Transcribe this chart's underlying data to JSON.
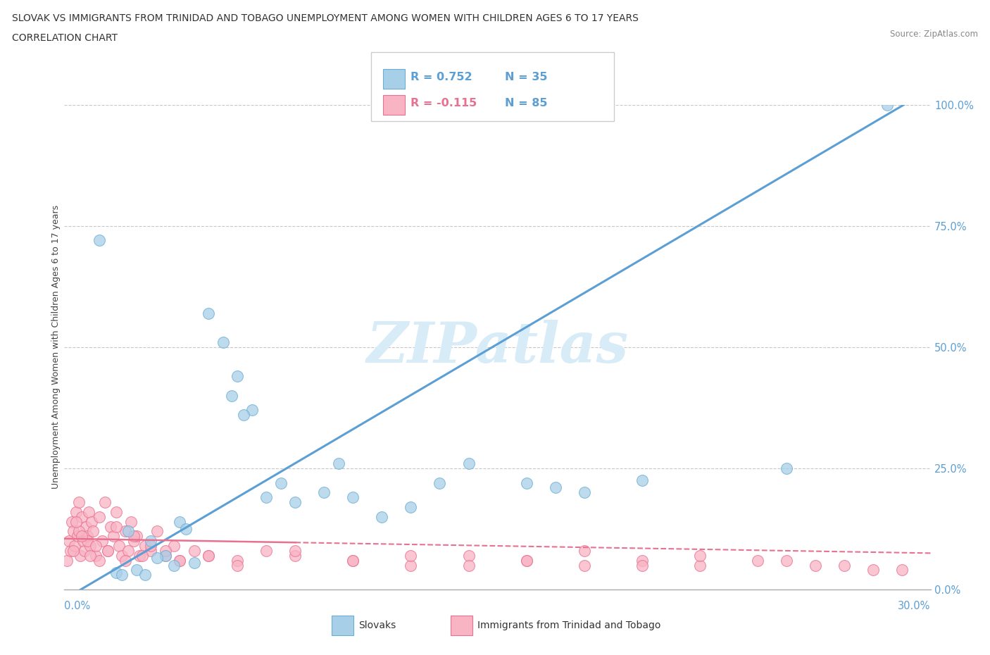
{
  "title_line1": "SLOVAK VS IMMIGRANTS FROM TRINIDAD AND TOBAGO UNEMPLOYMENT AMONG WOMEN WITH CHILDREN AGES 6 TO 17 YEARS",
  "title_line2": "CORRELATION CHART",
  "source": "Source: ZipAtlas.com",
  "ylabel_label": "Unemployment Among Women with Children Ages 6 to 17 years",
  "legend_slovak": "Slovaks",
  "legend_tt": "Immigrants from Trinidad and Tobago",
  "r_slovak": "R = 0.752",
  "n_slovak": "N = 35",
  "r_tt": "R = -0.115",
  "n_tt": "N = 85",
  "color_slovak": "#a8cfe8",
  "color_tt": "#f9b4c4",
  "color_slovak_edge": "#6aaed6",
  "color_tt_edge": "#e87090",
  "color_slovak_line": "#5b9fd4",
  "color_tt_line": "#e87090",
  "watermark_color": "#d8ecf7",
  "background": "#ffffff",
  "slovak_x": [
    1.2,
    1.8,
    2.5,
    3.0,
    3.5,
    4.0,
    4.5,
    5.0,
    5.5,
    6.0,
    6.5,
    7.0,
    7.5,
    8.0,
    9.0,
    10.0,
    11.0,
    12.0,
    13.0,
    14.0,
    16.0,
    17.0,
    18.0,
    20.0,
    25.0,
    28.5,
    3.2,
    4.2,
    2.0,
    2.2,
    2.8,
    3.8,
    5.8,
    6.2,
    9.5
  ],
  "slovak_y": [
    72.0,
    3.5,
    4.0,
    10.0,
    7.0,
    14.0,
    5.5,
    57.0,
    51.0,
    44.0,
    37.0,
    19.0,
    22.0,
    18.0,
    20.0,
    19.0,
    15.0,
    17.0,
    22.0,
    26.0,
    22.0,
    21.0,
    20.0,
    22.5,
    25.0,
    100.0,
    6.5,
    12.5,
    3.0,
    12.0,
    3.0,
    5.0,
    40.0,
    36.0,
    26.0
  ],
  "tt_x": [
    0.1,
    0.15,
    0.2,
    0.25,
    0.3,
    0.35,
    0.4,
    0.45,
    0.5,
    0.55,
    0.6,
    0.65,
    0.7,
    0.75,
    0.8,
    0.85,
    0.9,
    0.95,
    1.0,
    1.1,
    1.2,
    1.3,
    1.4,
    1.5,
    1.6,
    1.7,
    1.8,
    1.9,
    2.0,
    2.1,
    2.2,
    2.3,
    2.4,
    2.5,
    2.6,
    2.8,
    3.0,
    3.2,
    3.5,
    3.8,
    4.0,
    4.5,
    5.0,
    6.0,
    7.0,
    8.0,
    10.0,
    12.0,
    14.0,
    16.0,
    18.0,
    20.0,
    22.0,
    24.0,
    26.0,
    28.0,
    0.3,
    0.5,
    0.8,
    1.2,
    0.4,
    0.6,
    0.9,
    1.1,
    1.5,
    1.8,
    2.1,
    2.4,
    2.7,
    3.0,
    3.5,
    4.0,
    5.0,
    6.0,
    8.0,
    10.0,
    12.0,
    14.0,
    16.0,
    18.0,
    20.0,
    22.0,
    25.0,
    27.0,
    29.0
  ],
  "tt_y": [
    6.0,
    10.0,
    8.0,
    14.0,
    12.0,
    9.0,
    16.0,
    11.0,
    18.0,
    7.0,
    15.0,
    10.0,
    8.0,
    13.0,
    11.0,
    16.0,
    9.0,
    14.0,
    12.0,
    7.0,
    15.0,
    10.0,
    18.0,
    8.0,
    13.0,
    11.0,
    16.0,
    9.0,
    7.0,
    12.0,
    8.0,
    14.0,
    10.0,
    11.0,
    7.0,
    9.0,
    8.0,
    12.0,
    7.0,
    9.0,
    6.0,
    8.0,
    7.0,
    6.0,
    8.0,
    7.0,
    6.0,
    5.0,
    7.0,
    6.0,
    5.0,
    6.0,
    5.0,
    6.0,
    5.0,
    4.0,
    8.0,
    12.0,
    10.0,
    6.0,
    14.0,
    11.0,
    7.0,
    9.0,
    8.0,
    13.0,
    6.0,
    11.0,
    7.0,
    9.0,
    8.0,
    6.0,
    7.0,
    5.0,
    8.0,
    6.0,
    7.0,
    5.0,
    6.0,
    8.0,
    5.0,
    7.0,
    6.0,
    5.0,
    4.0
  ]
}
